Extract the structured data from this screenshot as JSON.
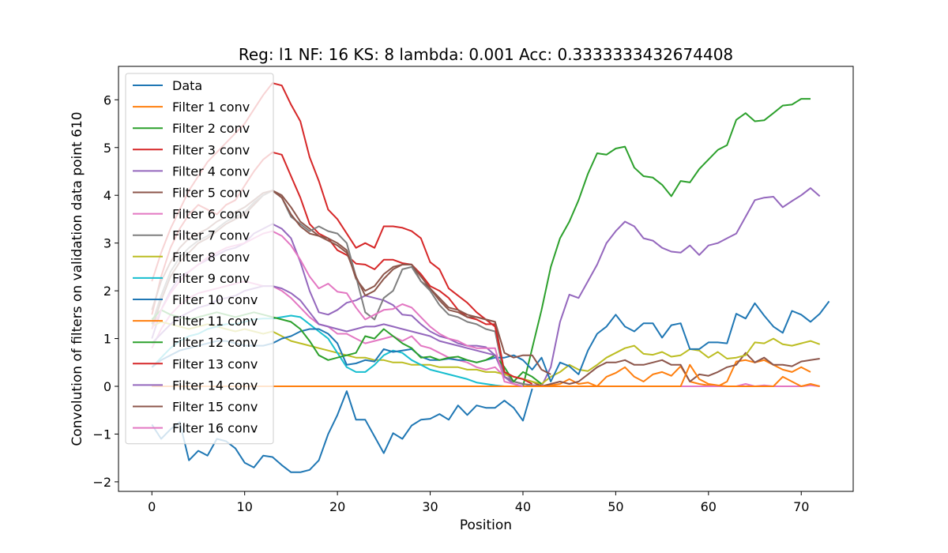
{
  "chart_data": {
    "type": "line",
    "title": "Reg: l1  NF: 16  KS: 8  lambda: 0.001 Acc: 0.3333333432674408",
    "xlabel": "Position",
    "ylabel": "Convolution of filters on validation data point 610",
    "xlim": [
      -3.6,
      75.6
    ],
    "ylim": [
      -2.2,
      6.7
    ],
    "xticks": [
      0,
      10,
      20,
      30,
      40,
      50,
      60,
      70
    ],
    "yticks": [
      -2,
      -1,
      0,
      1,
      2,
      3,
      4,
      5,
      6
    ],
    "ytick_labels": [
      "−2",
      "−1",
      "0",
      "1",
      "2",
      "3",
      "4",
      "5",
      "6"
    ],
    "legend_position": "top-left",
    "grid": false,
    "series": [
      {
        "name": "Data",
        "color": "#1f77b4",
        "x0": 0,
        "values": [
          -0.8,
          -1.1,
          -0.9,
          -0.75,
          -1.55,
          -1.35,
          -1.45,
          -1.1,
          -1.15,
          -1.3,
          -1.6,
          -1.7,
          -1.45,
          -1.48,
          -1.65,
          -1.8,
          -1.8,
          -1.75,
          -1.55,
          -1.0,
          -0.6,
          -0.1,
          -0.7,
          -0.7,
          -1.05,
          -1.4,
          -0.98,
          -1.1,
          -0.82,
          -0.7,
          -0.68,
          -0.58,
          -0.7,
          -0.4,
          -0.6,
          -0.4,
          -0.45,
          -0.45,
          -0.3,
          -0.45,
          -0.72,
          -0.05
        ]
      },
      {
        "name": "Filter 1 conv",
        "color": "#ff7f0e",
        "x0": 0,
        "values": [
          0,
          0,
          0,
          0,
          0,
          0,
          0,
          0,
          0,
          0,
          0,
          0,
          0,
          0,
          0,
          0,
          0,
          0,
          0,
          0,
          0,
          0,
          0,
          0,
          0,
          0,
          0,
          0,
          0,
          0,
          0,
          0,
          0,
          0,
          0,
          0,
          0,
          0,
          0,
          0,
          0,
          0,
          0,
          0.02,
          0.05,
          0.15,
          0.05,
          0.08,
          0.0,
          0.2,
          0.28,
          0.4,
          0.2,
          0.1,
          0.25,
          0.3,
          0.22,
          0.42,
          0.1,
          0.05,
          0.02,
          0.0,
          0.1,
          0.52,
          0.55,
          0.5,
          0.55,
          0.45,
          0.35,
          0.3,
          0.4,
          0.3
        ]
      },
      {
        "name": "Filter 2 conv",
        "color": "#2ca02c",
        "x0": 40,
        "values": [
          0.0,
          0.8,
          1.6,
          2.5,
          3.1,
          3.45,
          3.9,
          4.45,
          4.88,
          4.85,
          4.98,
          5.02,
          4.58,
          4.4,
          4.37,
          4.22,
          3.98,
          4.3,
          4.27,
          4.55,
          4.75,
          4.95,
          5.05,
          5.58,
          5.72,
          5.55,
          5.57,
          5.72,
          5.88,
          5.9,
          6.02,
          6.02
        ]
      },
      {
        "name": "Filter 3 conv",
        "color": "#d62728",
        "x0": 0,
        "values": [
          1.5,
          2.3,
          2.9,
          3.3,
          3.6,
          3.8,
          3.7,
          3.6,
          3.8,
          3.9,
          4.2,
          4.5,
          4.75,
          4.9,
          4.85,
          4.4,
          3.95,
          3.4,
          3.2,
          3.1,
          2.85,
          2.75,
          2.57,
          2.55,
          2.45,
          2.65,
          2.65,
          2.58,
          2.55,
          2.35,
          2.1,
          2.0,
          1.85,
          1.6,
          1.45,
          1.4,
          1.3,
          1.3,
          0.2,
          0.1,
          0.05,
          0.02,
          0.02
        ]
      },
      {
        "name": "Filter 4 conv",
        "color": "#9467bd",
        "x0": 0,
        "values": [
          1.0,
          1.6,
          2.0,
          2.3,
          2.4,
          2.55,
          2.65,
          2.75,
          2.85,
          2.9,
          3.0,
          3.2,
          3.3,
          3.4,
          3.3,
          3.1,
          2.6,
          2.0,
          1.55,
          1.5,
          1.6,
          1.75,
          1.8,
          1.9,
          1.85,
          1.8,
          1.7,
          1.5,
          1.48,
          1.3,
          1.15,
          1.05,
          1.0,
          0.9,
          0.85,
          0.85,
          0.82,
          0.65,
          0.3,
          0.1,
          0.05,
          0.02,
          0.0,
          0.4,
          1.35,
          1.92,
          1.85,
          2.2,
          2.55,
          3.0,
          3.25,
          3.45,
          3.35,
          3.1,
          3.05,
          2.9,
          2.82,
          2.8,
          2.95,
          2.75,
          2.95,
          3.0,
          3.1,
          3.2,
          3.55,
          3.9,
          3.95,
          3.97,
          3.75,
          3.88,
          4.0,
          4.15,
          3.98
        ]
      },
      {
        "name": "Filter 5 conv",
        "color": "#8c564b",
        "x0": 0,
        "values": [
          1.2,
          1.8,
          2.3,
          2.6,
          2.8,
          3.0,
          3.1,
          3.25,
          3.4,
          3.5,
          3.6,
          3.8,
          4.0,
          4.1,
          4.0,
          3.75,
          3.45,
          3.3,
          3.15,
          3.1,
          3.0,
          2.85,
          2.25,
          2.0,
          2.1,
          2.35,
          2.5,
          2.55,
          2.55,
          2.2,
          2.05,
          1.8,
          1.6,
          1.55,
          1.45,
          1.45,
          1.4,
          1.35,
          0.3,
          0.2,
          0.15,
          0.1,
          0.0,
          0.05,
          0.1,
          0.05,
          0.1,
          0.25,
          0.4,
          0.5,
          0.5,
          0.55,
          0.45,
          0.45,
          0.5,
          0.55,
          0.45,
          0.45,
          0.1,
          0.25,
          0.22,
          0.3,
          0.4,
          0.45,
          0.7,
          0.5,
          0.6,
          0.45,
          0.45,
          0.42,
          0.52,
          0.55,
          0.58
        ]
      },
      {
        "name": "Filter 6 conv",
        "color": "#e377c2",
        "x0": 0,
        "values": [
          0.8,
          1.2,
          1.5,
          1.7,
          1.85,
          1.95,
          2.0,
          2.05,
          2.1,
          2.15,
          2.2,
          2.15,
          2.1,
          2.1,
          2.0,
          1.85,
          1.65,
          1.45,
          1.3,
          1.25,
          1.1,
          1.1,
          1.0,
          0.9,
          0.95,
          1.0,
          1.05,
          0.95,
          1.05,
          0.85,
          0.8,
          0.7,
          0.6,
          0.55,
          0.5,
          0.4,
          0.35,
          0.4,
          0.2,
          0.05,
          0.0,
          0.0,
          0.0,
          0.0,
          0.0,
          0.0,
          0.0,
          0.0,
          0.0,
          0.0,
          0.0,
          0.0,
          0.0,
          0.0,
          0.0,
          0.0,
          0.0,
          0.0,
          0.0,
          0.0,
          0.0,
          0.0,
          0.0,
          0.0,
          0.05,
          0.0,
          0.02,
          0.0,
          0.0,
          0.0,
          0.0,
          0.02,
          0.0
        ]
      },
      {
        "name": "Filter 7 conv",
        "color": "#7f7f7f",
        "x0": 0,
        "values": [
          1.3,
          1.9,
          2.4,
          2.7,
          2.9,
          3.05,
          3.15,
          3.3,
          3.45,
          3.55,
          3.65,
          3.85,
          4.0,
          4.1,
          3.95,
          3.55,
          3.4,
          3.25,
          3.35,
          3.25,
          3.2,
          3.0,
          2.3,
          1.55,
          1.4,
          1.85,
          2.0,
          2.45,
          2.5,
          2.2,
          2.0,
          1.7,
          1.5,
          1.45,
          1.35,
          1.3,
          1.2,
          1.15,
          0.2,
          0.1,
          0.05,
          0.02
        ]
      },
      {
        "name": "Filter 8 conv",
        "color": "#bcbd22",
        "x0": 0,
        "values": [
          1.25,
          1.35,
          1.3,
          1.25,
          1.2,
          1.25,
          1.3,
          1.25,
          1.2,
          1.15,
          1.2,
          1.15,
          1.1,
          1.15,
          1.05,
          0.95,
          0.9,
          0.85,
          0.8,
          0.75,
          0.7,
          0.65,
          0.6,
          0.6,
          0.55,
          0.55,
          0.5,
          0.5,
          0.45,
          0.45,
          0.45,
          0.4,
          0.4,
          0.4,
          0.35,
          0.35,
          0.3,
          0.3,
          0.25,
          0.2,
          0.15,
          0.1,
          0.05,
          0.2,
          0.3,
          0.45,
          0.35,
          0.32,
          0.45,
          0.6,
          0.7,
          0.8,
          0.85,
          0.68,
          0.66,
          0.72,
          0.62,
          0.65,
          0.78,
          0.75,
          0.6,
          0.72,
          0.58,
          0.6,
          0.65,
          0.92,
          0.9,
          1.0,
          0.88,
          0.85,
          0.9,
          0.95,
          0.88
        ]
      },
      {
        "name": "Filter 9 conv",
        "color": "#17becf",
        "x0": 0,
        "values": [
          0.4,
          0.6,
          0.8,
          0.95,
          1.05,
          1.1,
          1.2,
          1.25,
          1.3,
          1.3,
          1.35,
          1.4,
          1.42,
          1.42,
          1.45,
          1.48,
          1.45,
          1.3,
          1.15,
          1.0,
          0.7,
          0.4,
          0.3,
          0.3,
          0.45,
          0.65,
          0.75,
          0.7,
          0.55,
          0.45,
          0.35,
          0.3,
          0.25,
          0.2,
          0.15,
          0.08,
          0.05,
          0.02,
          0.0
        ]
      },
      {
        "name": "Filter 10 conv",
        "color": "#1f77b4",
        "x0": 0,
        "values": [
          0.4,
          0.55,
          0.65,
          0.75,
          0.8,
          0.85,
          0.9,
          0.95,
          0.95,
          0.9,
          0.85,
          0.85,
          0.85,
          0.9,
          1.0,
          1.05,
          1.15,
          1.2,
          1.2,
          1.1,
          0.9,
          0.45,
          0.48,
          0.55,
          0.52,
          0.78,
          0.72,
          0.75,
          0.78,
          0.62,
          0.55,
          0.55,
          0.58,
          0.55,
          0.55,
          0.5,
          0.55,
          0.6,
          0.6,
          0.65,
          0.55,
          0.35,
          0.6,
          0.1,
          0.5,
          0.42,
          0.25,
          0.75,
          1.1,
          1.25,
          1.5,
          1.25,
          1.15,
          1.32,
          1.32,
          1.02,
          1.28,
          1.32,
          0.78,
          0.78,
          0.92,
          0.92,
          0.9,
          1.52,
          1.42,
          1.74,
          1.48,
          1.25,
          1.12,
          1.58,
          1.5,
          1.35,
          1.52,
          1.78
        ]
      },
      {
        "name": "Filter 11 conv",
        "color": "#ff7f0e",
        "x0": 0,
        "values": [
          0,
          0,
          0,
          0,
          0,
          0,
          0,
          0,
          0,
          0,
          0,
          0,
          0,
          0,
          0,
          0,
          0,
          0,
          0,
          0,
          0,
          0,
          0,
          0,
          0,
          0,
          0,
          0,
          0,
          0,
          0,
          0,
          0,
          0,
          0,
          0,
          0,
          0,
          0,
          0,
          0,
          0,
          0,
          0,
          0,
          0,
          0,
          0,
          0,
          0,
          0,
          0,
          0,
          0,
          0,
          0,
          0,
          0,
          0.45,
          0.15,
          0.05,
          0.02,
          0,
          0,
          0,
          0,
          0,
          0,
          0.2,
          0.1,
          0.0,
          0.05,
          0.0
        ]
      },
      {
        "name": "Filter 12 conv",
        "color": "#2ca02c",
        "x0": 0,
        "values": [
          1.4,
          1.6,
          1.5,
          1.45,
          1.4,
          1.45,
          1.5,
          1.55,
          1.5,
          1.45,
          1.5,
          1.55,
          1.5,
          1.45,
          1.4,
          1.35,
          1.2,
          0.95,
          0.65,
          0.55,
          0.6,
          0.65,
          0.7,
          1.05,
          1.0,
          1.2,
          1.05,
          0.9,
          0.8,
          0.6,
          0.62,
          0.55,
          0.6,
          0.62,
          0.55,
          0.5,
          0.55,
          0.65,
          0.4,
          0.1,
          0.3,
          0.2,
          0.05
        ]
      },
      {
        "name": "Filter 13 conv",
        "color": "#d62728",
        "x0": 0,
        "values": [
          2.2,
          2.8,
          3.3,
          3.7,
          4.1,
          4.4,
          4.7,
          4.9,
          5.1,
          5.3,
          5.5,
          5.8,
          6.1,
          6.35,
          6.3,
          5.9,
          5.55,
          4.8,
          4.3,
          3.7,
          3.5,
          3.2,
          2.9,
          3.0,
          2.9,
          3.35,
          3.35,
          3.32,
          3.25,
          3.1,
          2.6,
          2.45,
          2.05,
          1.9,
          1.75,
          1.55,
          1.4,
          1.25,
          0.3,
          0.2,
          0.15,
          0.05
        ]
      },
      {
        "name": "Filter 14 conv",
        "color": "#9467bd",
        "x0": 0,
        "values": [
          0.9,
          1.1,
          1.3,
          1.45,
          1.55,
          1.65,
          1.7,
          1.8,
          1.85,
          1.9,
          2.0,
          2.05,
          2.1,
          2.1,
          2.05,
          1.95,
          1.8,
          1.55,
          1.3,
          1.25,
          1.2,
          1.15,
          1.2,
          1.25,
          1.25,
          1.3,
          1.25,
          1.2,
          1.15,
          1.1,
          1.05,
          0.95,
          0.9,
          0.85,
          0.8,
          0.75,
          0.7,
          0.65,
          0.2,
          0.05,
          0.0
        ]
      },
      {
        "name": "Filter 15 conv",
        "color": "#8c564b",
        "x0": 0,
        "values": [
          1.6,
          2.2,
          2.6,
          2.9,
          3.1,
          3.2,
          3.3,
          3.45,
          3.55,
          3.65,
          3.75,
          3.9,
          4.05,
          4.1,
          3.95,
          3.6,
          3.35,
          3.2,
          3.15,
          3.05,
          2.95,
          2.8,
          2.3,
          1.9,
          2.0,
          2.25,
          2.45,
          2.55,
          2.55,
          2.3,
          2.05,
          1.85,
          1.65,
          1.6,
          1.5,
          1.45,
          1.4,
          1.35,
          0.7,
          0.6,
          0.65,
          0.65,
          0.35,
          0.25
        ]
      },
      {
        "name": "Filter 16 conv",
        "color": "#e377c2",
        "x0": 0,
        "values": [
          1.2,
          1.6,
          1.95,
          2.2,
          2.4,
          2.55,
          2.7,
          2.8,
          2.9,
          2.95,
          3.0,
          3.1,
          3.2,
          3.25,
          3.15,
          2.95,
          2.65,
          2.3,
          2.05,
          2.15,
          1.98,
          1.95,
          1.65,
          1.4,
          1.5,
          1.6,
          1.62,
          1.72,
          1.65,
          1.45,
          1.25,
          1.1,
          1.0,
          0.95,
          0.85,
          0.8,
          0.8,
          0.8,
          0.1,
          0.05,
          0.0
        ]
      }
    ]
  }
}
